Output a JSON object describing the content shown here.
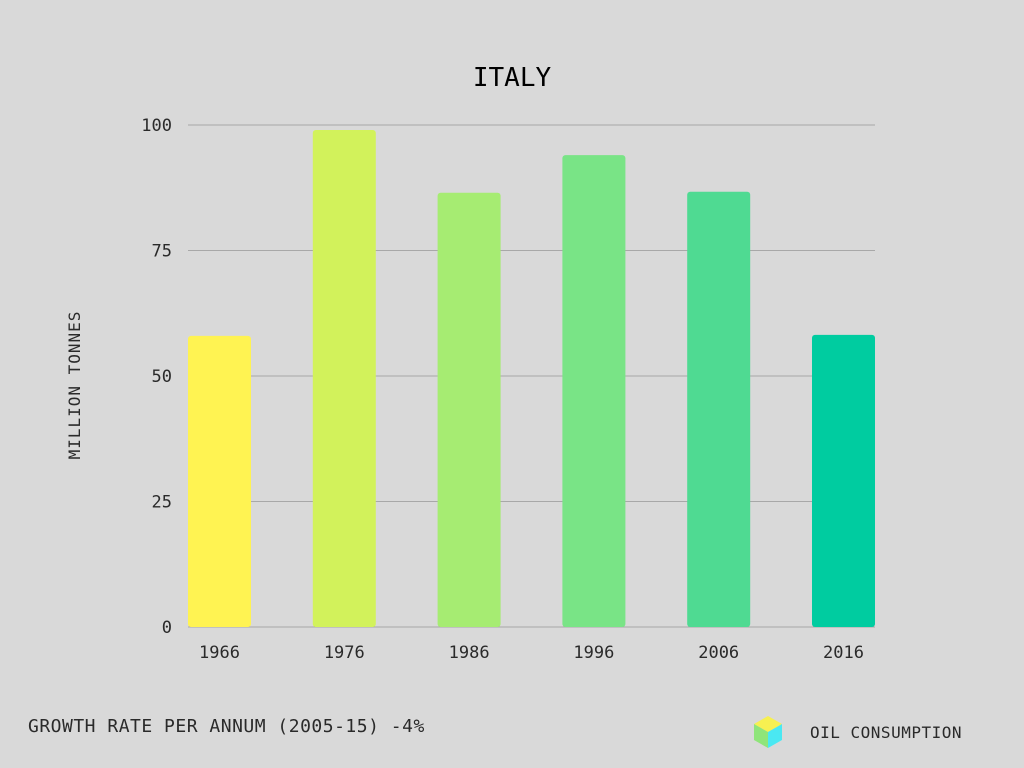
{
  "chart_data": {
    "type": "bar",
    "title": "ITALY",
    "xlabel": "",
    "ylabel": "MILLION TONNES",
    "categories": [
      "1966",
      "1976",
      "1986",
      "1996",
      "2006",
      "2016"
    ],
    "values": [
      58,
      99,
      86.5,
      94,
      86.7,
      58.2
    ],
    "ylim": [
      0,
      100
    ],
    "yticks": [
      0,
      25,
      50,
      75,
      100
    ],
    "grid": true,
    "legend_position": "bottom-right",
    "bar_colors": [
      "#fff352",
      "#d2f25b",
      "#a6ec72",
      "#79e486",
      "#4fda92",
      "#00cca0"
    ],
    "series": [
      {
        "name": "OIL CONSUMPTION",
        "values": [
          58,
          99,
          86.5,
          94,
          86.7,
          58.2
        ]
      }
    ]
  },
  "footer": {
    "note": "GROWTH RATE PER ANNUM (2005-15) -4%"
  },
  "legend": {
    "label": "OIL CONSUMPTION",
    "icon": "cube-icon",
    "icon_colors": {
      "top": "#f7f051",
      "left": "#8fe57a",
      "right": "#4ae8f2"
    }
  },
  "colors": {
    "background": "#d9d9d9",
    "grid": "#a8a8a8",
    "text": "#1f1f1f"
  }
}
